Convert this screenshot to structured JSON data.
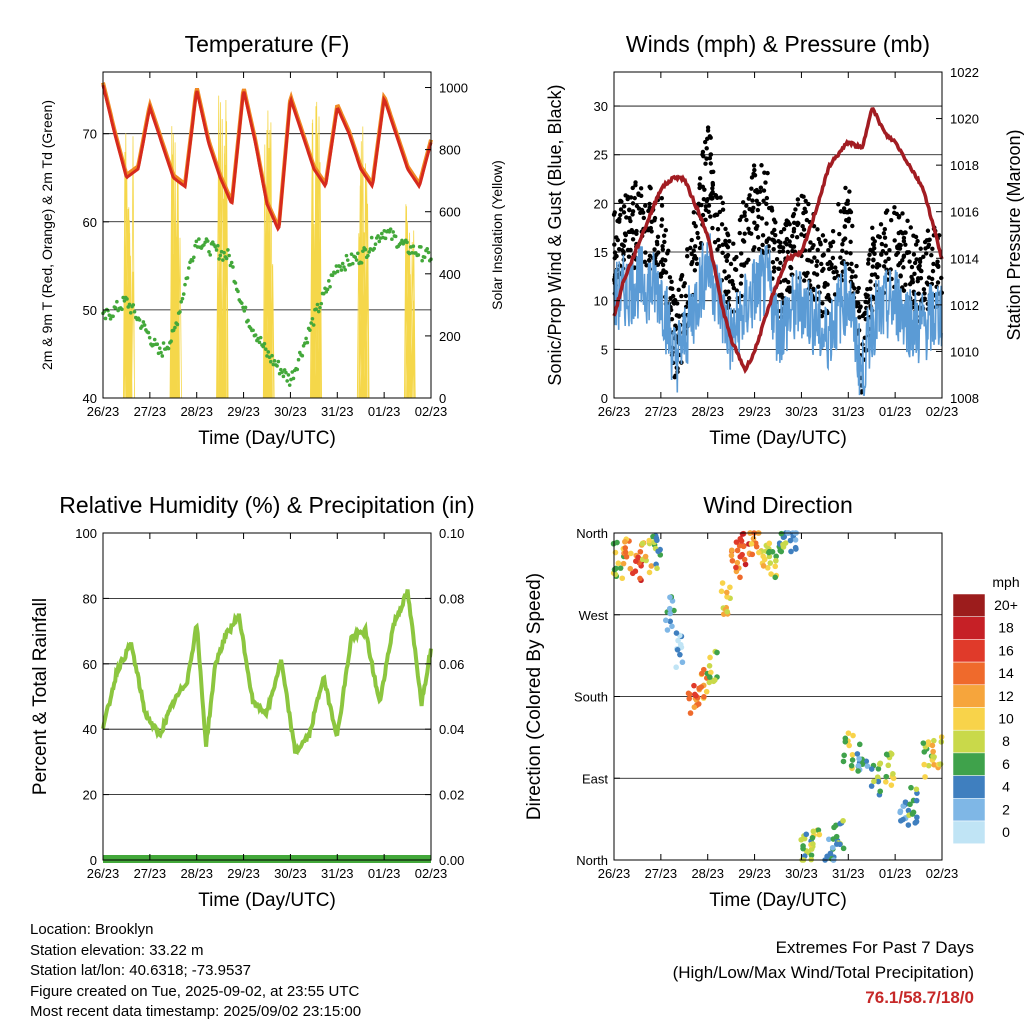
{
  "chart_data": [
    {
      "type": "line",
      "title": "Temperature (F)",
      "xlabel": "Time (Day/UTC)",
      "ylabel": "2m & 9m T (Red, Orange) & 2m Td (Green)",
      "ylabel_right": "Solar Insolation (Yellow)",
      "x_ticks": [
        "26/23",
        "27/23",
        "28/23",
        "29/23",
        "30/23",
        "31/23",
        "01/23",
        "02/23"
      ],
      "ylim": [
        40,
        77
      ],
      "y_ticks": [
        40,
        50,
        60,
        70
      ],
      "ylim_right": [
        0,
        1050
      ],
      "y_ticks_right": [
        0,
        200,
        400,
        600,
        800,
        1000
      ],
      "colors": {
        "temp_2m": "#d62a1e",
        "temp_9m": "#f08a24",
        "dewpoint": "#43a83a",
        "solar": "#f5d74a"
      },
      "series": [
        {
          "name": "2m T",
          "x": [
            0,
            0.25,
            0.5,
            0.75,
            1,
            1.25,
            1.5,
            1.75,
            2,
            2.25,
            2.5,
            2.75,
            3,
            3.25,
            3.5,
            3.75,
            4,
            4.25,
            4.5,
            4.75,
            5,
            5.25,
            5.5,
            5.75,
            6,
            6.25,
            6.5,
            6.75,
            7
          ],
          "values": [
            75.5,
            70,
            65,
            66,
            73,
            69,
            65,
            64,
            75,
            69,
            65,
            62,
            75,
            69,
            62,
            59,
            74,
            70,
            66,
            64,
            73,
            70,
            66,
            64,
            74,
            70,
            66,
            64,
            69
          ]
        },
        {
          "name": "2m Td",
          "x": [
            0,
            0.5,
            1,
            1.2,
            1.5,
            1.8,
            2,
            2.3,
            2.7,
            3,
            3.5,
            4,
            4.5,
            5,
            5.5,
            6,
            6.5,
            7
          ],
          "values": [
            49,
            51,
            47,
            45,
            47,
            54,
            58,
            57,
            56,
            50,
            45,
            42,
            49,
            55,
            56,
            59,
            57,
            56
          ]
        },
        {
          "name": "Solar Insolation",
          "x": [
            0,
            0.4,
            0.5,
            0.55,
            1,
            1.4,
            1.5,
            1.55,
            2,
            2.4,
            2.5,
            2.55,
            3,
            3.4,
            3.5,
            3.55,
            4,
            4.4,
            4.5,
            4.55,
            5,
            5.4,
            5.5,
            5.55,
            6,
            6.4,
            6.5,
            6.55,
            7
          ],
          "values": [
            0,
            0,
            860,
            0,
            0,
            0,
            920,
            0,
            0,
            0,
            980,
            0,
            0,
            0,
            970,
            0,
            0,
            0,
            960,
            0,
            0,
            0,
            880,
            0,
            0,
            0,
            750,
            0,
            0
          ]
        }
      ]
    },
    {
      "type": "line",
      "title": "Winds (mph) & Pressure (mb)",
      "xlabel": "Time (Day/UTC)",
      "ylabel": "Sonic/Prop Wind & Gust (Blue, Black)",
      "ylabel_right": "Station Pressure (Maroon)",
      "x_ticks": [
        "26/23",
        "27/23",
        "28/23",
        "29/23",
        "30/23",
        "31/23",
        "01/23",
        "02/23"
      ],
      "ylim": [
        0,
        33.5
      ],
      "y_ticks": [
        0,
        5,
        10,
        15,
        20,
        25,
        30
      ],
      "ylim_right": [
        1008,
        1022
      ],
      "y_ticks_right": [
        1008,
        1010,
        1012,
        1014,
        1016,
        1018,
        1020,
        1022
      ],
      "colors": {
        "wind": "#5b9bd5",
        "gust": "#000000",
        "pressure": "#a21c22"
      },
      "series": [
        {
          "name": "Wind",
          "x": [
            0,
            0.5,
            1,
            1.3,
            1.5,
            2,
            2.5,
            3,
            3.3,
            3.5,
            4,
            4.3,
            4.5,
            5,
            5.3,
            5.5,
            6,
            6.5,
            7
          ],
          "values": [
            10,
            12,
            11,
            4,
            6,
            14,
            6,
            11,
            12,
            7,
            10,
            8,
            6,
            11,
            2,
            8,
            10,
            7,
            9
          ]
        },
        {
          "name": "Gust",
          "x": [
            0,
            0.5,
            1,
            1.3,
            1.5,
            2,
            2.5,
            3,
            3.3,
            3.5,
            4,
            4.3,
            4.5,
            5,
            5.3,
            5.5,
            6,
            6.5,
            7
          ],
          "values": [
            15,
            18,
            17,
            6,
            9,
            24,
            11,
            20,
            19,
            12,
            17,
            14,
            12,
            18,
            4,
            13,
            16,
            12,
            14
          ]
        },
        {
          "name": "Pressure",
          "x": [
            0,
            0.2,
            0.5,
            0.8,
            1,
            1.3,
            1.5,
            1.8,
            2,
            2.3,
            2.5,
            2.8,
            3,
            3.4,
            3.7,
            4,
            4.3,
            4.6,
            5,
            5.3,
            5.5,
            5.8,
            6,
            6.3,
            6.6,
            7
          ],
          "values": [
            1011.5,
            1013,
            1014.5,
            1016,
            1017,
            1017.5,
            1017.4,
            1016,
            1015,
            1012,
            1010.5,
            1009.2,
            1010,
            1012.5,
            1014,
            1014.2,
            1016,
            1018,
            1019,
            1018.7,
            1020.5,
            1019.3,
            1019,
            1018,
            1017,
            1014
          ]
        }
      ]
    },
    {
      "type": "line",
      "title": "Relative Humidity (%) & Precipitation (in)",
      "xlabel": "Time (Day/UTC)",
      "ylabel": "Percent & Total Rainfall",
      "x_ticks": [
        "26/23",
        "27/23",
        "28/23",
        "29/23",
        "30/23",
        "31/23",
        "01/23",
        "02/23"
      ],
      "ylim": [
        0,
        100
      ],
      "y_ticks": [
        0,
        20,
        40,
        60,
        80,
        100
      ],
      "ylim_right": [
        0,
        0.1
      ],
      "y_ticks_right": [
        "0.00",
        "0.02",
        "0.04",
        "0.06",
        "0.08",
        "0.10"
      ],
      "colors": {
        "rh": "#8cc63f",
        "precip": "#43a83a"
      },
      "series": [
        {
          "name": "RH",
          "x": [
            0,
            0.3,
            0.6,
            0.9,
            1.2,
            1.5,
            1.8,
            2,
            2.2,
            2.4,
            2.6,
            2.9,
            3.2,
            3.5,
            3.8,
            4.1,
            4.4,
            4.7,
            5.0,
            5.3,
            5.6,
            5.9,
            6.2,
            6.5,
            6.8,
            7
          ],
          "values": [
            40,
            58,
            66,
            45,
            38,
            48,
            55,
            72,
            35,
            60,
            68,
            75,
            48,
            45,
            61,
            33,
            38,
            56,
            38,
            68,
            70,
            48,
            72,
            82,
            48,
            65
          ]
        },
        {
          "name": "Total Precipitation",
          "x": [
            0,
            7
          ],
          "values": [
            0,
            0
          ]
        }
      ]
    },
    {
      "type": "scatter",
      "title": "Wind Direction",
      "xlabel": "Time (Day/UTC)",
      "ylabel": "Direction (Colored By Speed)",
      "x_ticks": [
        "26/23",
        "27/23",
        "28/23",
        "29/23",
        "30/23",
        "31/23",
        "01/23",
        "02/23"
      ],
      "y_ticks": [
        "North",
        "East",
        "South",
        "West",
        "North"
      ],
      "ylim": [
        0,
        360
      ],
      "legend_title": "mph",
      "legend": [
        "20+",
        "18",
        "16",
        "14",
        "12",
        "10",
        "8",
        "6",
        "4",
        "2",
        "0"
      ],
      "legend_colors": [
        "#9c1c1c",
        "#c62026",
        "#e03a2a",
        "#ef6a2c",
        "#f6a53c",
        "#f8d34a",
        "#c9d94a",
        "#3fa24b",
        "#3f7fbf",
        "#7fb7e6",
        "#c0e4f5"
      ],
      "series": [
        {
          "name": "Direction",
          "x": [
            0.1,
            0.3,
            0.5,
            0.7,
            0.9,
            1.2,
            1.4,
            1.7,
            1.9,
            2.1,
            2.4,
            2.6,
            2.8,
            3.0,
            3.2,
            3.4,
            3.6,
            3.8,
            4.1,
            4.3,
            4.6,
            4.8,
            5.0,
            5.3,
            5.6,
            5.9,
            6.2,
            6.4,
            6.7,
            6.9
          ],
          "values": [
            330,
            340,
            325,
            335,
            340,
            270,
            230,
            180,
            190,
            210,
            290,
            330,
            345,
            355,
            340,
            330,
            350,
            355,
            10,
            20,
            5,
            30,
            120,
            110,
            90,
            100,
            50,
            60,
            110,
            120
          ],
          "speeds": [
            8,
            12,
            15,
            10,
            6,
            4,
            2,
            14,
            12,
            8,
            10,
            14,
            16,
            12,
            10,
            8,
            6,
            4,
            6,
            8,
            4,
            6,
            8,
            4,
            6,
            8,
            4,
            6,
            8,
            10
          ]
        }
      ]
    }
  ],
  "info": {
    "location": "Location: Brooklyn",
    "elevation": "Station elevation: 33.22 m",
    "latlon": "Station lat/lon: 40.6318; -73.9537",
    "created": "Figure created on Tue, 2025-09-02, at 23:55 UTC",
    "recent": "Most recent data timestamp: 2025/09/02 23:15:00"
  },
  "extremes": {
    "title": "Extremes For Past 7 Days",
    "subtitle": "(High/Low/Max Wind/Total Precipitation)",
    "values": "76.1/58.7/18/0"
  }
}
